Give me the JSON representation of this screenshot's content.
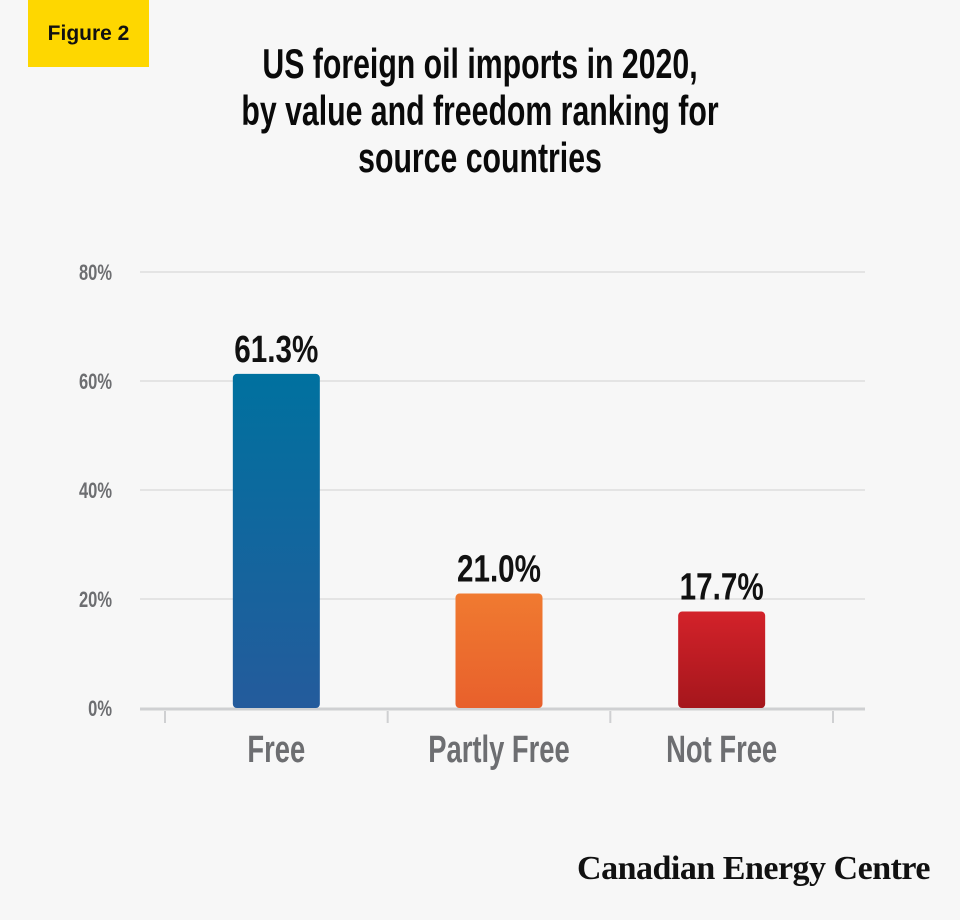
{
  "figure_label": "Figure 2",
  "brand": "Canadian Energy Centre",
  "chart_data": {
    "type": "bar",
    "title": [
      "US foreign oil imports in 2020,",
      "by value and freedom ranking for",
      "source countries"
    ],
    "categories": [
      "Free",
      "Partly Free",
      "Not Free"
    ],
    "values": [
      61.3,
      21.0,
      17.7
    ],
    "data_labels": [
      "61.3%",
      "21.0%",
      "17.7%"
    ],
    "colors": [
      [
        "#00719f",
        "#245b9c"
      ],
      [
        "#f07a30",
        "#e8602c"
      ],
      [
        "#d3222a",
        "#a5161c"
      ]
    ],
    "xlabel": "",
    "ylabel": "",
    "ylim": [
      0,
      80
    ],
    "yticks": [
      0,
      20,
      40,
      60,
      80
    ],
    "ytick_labels": [
      "0%",
      "20%",
      "40%",
      "60%",
      "80%"
    ],
    "grid": true,
    "legend": "none"
  }
}
